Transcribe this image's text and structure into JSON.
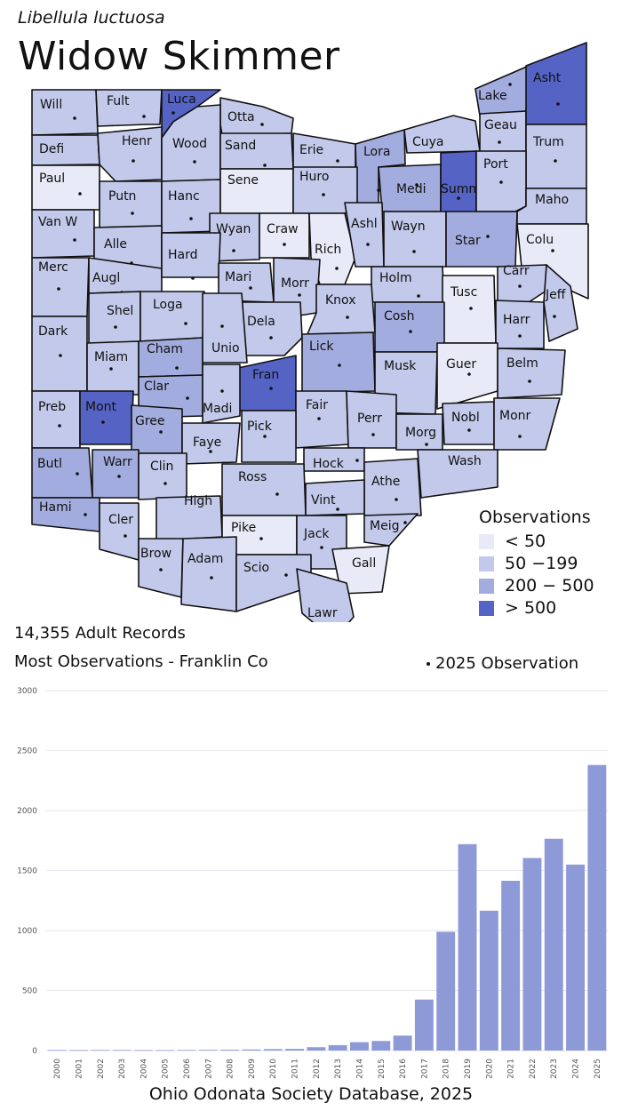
{
  "header": {
    "species": "Libellula luctuosa",
    "title": "Widow Skimmer"
  },
  "legend": {
    "title": "Observations",
    "items": [
      {
        "label": "< 50",
        "color": "#e8ebf7"
      },
      {
        "label": "50 −199",
        "color": "#c3c9ea"
      },
      {
        "label": "200 − 500",
        "color": "#a3acde"
      },
      {
        "label": "> 500",
        "color": "#5563c4"
      }
    ]
  },
  "summary": {
    "records": "14,355 Adult Records",
    "most": "Most Observations - Franklin Co",
    "marker_note": "2025 Observation"
  },
  "map": {
    "counties": [
      {
        "name": "Will",
        "bin": 1,
        "dot": true
      },
      {
        "name": "Fult",
        "bin": 1,
        "dot": true
      },
      {
        "name": "Luca",
        "bin": 3,
        "dot": true
      },
      {
        "name": "Otta",
        "bin": 1,
        "dot": true
      },
      {
        "name": "Defi",
        "bin": 1,
        "dot": false
      },
      {
        "name": "Henr",
        "bin": 1,
        "dot": true
      },
      {
        "name": "Wood",
        "bin": 1,
        "dot": true
      },
      {
        "name": "Sand",
        "bin": 1,
        "dot": true
      },
      {
        "name": "Erie",
        "bin": 1,
        "dot": true
      },
      {
        "name": "Lora",
        "bin": 2,
        "dot": true
      },
      {
        "name": "Cuya",
        "bin": 1,
        "dot": true
      },
      {
        "name": "Lake",
        "bin": 2,
        "dot": true
      },
      {
        "name": "Geau",
        "bin": 1,
        "dot": true
      },
      {
        "name": "Asht",
        "bin": 3,
        "dot": true
      },
      {
        "name": "Trum",
        "bin": 1,
        "dot": true
      },
      {
        "name": "Paul",
        "bin": 0,
        "dot": true
      },
      {
        "name": "Putn",
        "bin": 1,
        "dot": true
      },
      {
        "name": "Hanc",
        "bin": 1,
        "dot": true
      },
      {
        "name": "Sene",
        "bin": 0,
        "dot": false
      },
      {
        "name": "Huro",
        "bin": 1,
        "dot": true
      },
      {
        "name": "Medi",
        "bin": 2,
        "dot": true
      },
      {
        "name": "Summ",
        "bin": 3,
        "dot": true
      },
      {
        "name": "Port",
        "bin": 1,
        "dot": true
      },
      {
        "name": "Maho",
        "bin": 1,
        "dot": true
      },
      {
        "name": "Van W",
        "bin": 1,
        "dot": true
      },
      {
        "name": "Alle",
        "bin": 1,
        "dot": true
      },
      {
        "name": "Wyan",
        "bin": 1,
        "dot": true
      },
      {
        "name": "Craw",
        "bin": 0,
        "dot": true
      },
      {
        "name": "Rich",
        "bin": 0,
        "dot": true
      },
      {
        "name": "Ashl",
        "bin": 1,
        "dot": true
      },
      {
        "name": "Wayn",
        "bin": 1,
        "dot": true
      },
      {
        "name": "Star",
        "bin": 2,
        "dot": true
      },
      {
        "name": "Colu",
        "bin": 0,
        "dot": true
      },
      {
        "name": "Merc",
        "bin": 1,
        "dot": true
      },
      {
        "name": "Augl",
        "bin": 1,
        "dot": true
      },
      {
        "name": "Hard",
        "bin": 1,
        "dot": true
      },
      {
        "name": "Mari",
        "bin": 1,
        "dot": true
      },
      {
        "name": "Morr",
        "bin": 1,
        "dot": true
      },
      {
        "name": "Holm",
        "bin": 1,
        "dot": true
      },
      {
        "name": "Carr",
        "bin": 1,
        "dot": true
      },
      {
        "name": "Shel",
        "bin": 1,
        "dot": true
      },
      {
        "name": "Loga",
        "bin": 1,
        "dot": true
      },
      {
        "name": "Dela",
        "bin": 1,
        "dot": true
      },
      {
        "name": "Knox",
        "bin": 1,
        "dot": true
      },
      {
        "name": "Tusc",
        "bin": 0,
        "dot": true
      },
      {
        "name": "Jeff",
        "bin": 1,
        "dot": true
      },
      {
        "name": "Dark",
        "bin": 1,
        "dot": true
      },
      {
        "name": "Miam",
        "bin": 1,
        "dot": true
      },
      {
        "name": "Cham",
        "bin": 2,
        "dot": true
      },
      {
        "name": "Unio",
        "bin": 1,
        "dot": true
      },
      {
        "name": "Lick",
        "bin": 2,
        "dot": true
      },
      {
        "name": "Cosh",
        "bin": 2,
        "dot": true
      },
      {
        "name": "Harr",
        "bin": 1,
        "dot": true
      },
      {
        "name": "Clar",
        "bin": 2,
        "dot": true
      },
      {
        "name": "Fran",
        "bin": 3,
        "dot": true
      },
      {
        "name": "Musk",
        "bin": 1,
        "dot": false
      },
      {
        "name": "Guer",
        "bin": 0,
        "dot": true
      },
      {
        "name": "Belm",
        "bin": 1,
        "dot": true
      },
      {
        "name": "Preb",
        "bin": 1,
        "dot": true
      },
      {
        "name": "Mont",
        "bin": 3,
        "dot": true
      },
      {
        "name": "Gree",
        "bin": 2,
        "dot": true
      },
      {
        "name": "Madi",
        "bin": 1,
        "dot": true
      },
      {
        "name": "Fair",
        "bin": 1,
        "dot": true
      },
      {
        "name": "Perr",
        "bin": 1,
        "dot": true
      },
      {
        "name": "Nobl",
        "bin": 1,
        "dot": true
      },
      {
        "name": "Monr",
        "bin": 1,
        "dot": true
      },
      {
        "name": "Pick",
        "bin": 1,
        "dot": true
      },
      {
        "name": "Faye",
        "bin": 1,
        "dot": true
      },
      {
        "name": "Morg",
        "bin": 1,
        "dot": true
      },
      {
        "name": "Wash",
        "bin": 1,
        "dot": false
      },
      {
        "name": "Butl",
        "bin": 2,
        "dot": true
      },
      {
        "name": "Warr",
        "bin": 2,
        "dot": true
      },
      {
        "name": "Clin",
        "bin": 1,
        "dot": true
      },
      {
        "name": "Hock",
        "bin": 1,
        "dot": true
      },
      {
        "name": "Athe",
        "bin": 1,
        "dot": true
      },
      {
        "name": "Ross",
        "bin": 1,
        "dot": true
      },
      {
        "name": "Hami",
        "bin": 2,
        "dot": true
      },
      {
        "name": "High",
        "bin": 1,
        "dot": false
      },
      {
        "name": "Vint",
        "bin": 1,
        "dot": true
      },
      {
        "name": "Meig",
        "bin": 1,
        "dot": true
      },
      {
        "name": "Cler",
        "bin": 1,
        "dot": true
      },
      {
        "name": "Pike",
        "bin": 0,
        "dot": true
      },
      {
        "name": "Jack",
        "bin": 1,
        "dot": true
      },
      {
        "name": "Brow",
        "bin": 1,
        "dot": true
      },
      {
        "name": "Adam",
        "bin": 1,
        "dot": true
      },
      {
        "name": "Scio",
        "bin": 1,
        "dot": true
      },
      {
        "name": "Gall",
        "bin": 0,
        "dot": false
      },
      {
        "name": "Lawr",
        "bin": 1,
        "dot": true
      }
    ]
  },
  "chart_data": {
    "type": "bar",
    "categories": [
      "2000",
      "2001",
      "2002",
      "2003",
      "2004",
      "2005",
      "2006",
      "2007",
      "2008",
      "2009",
      "2010",
      "2011",
      "2012",
      "2013",
      "2014",
      "2015",
      "2016",
      "2017",
      "2018",
      "2019",
      "2020",
      "2021",
      "2022",
      "2023",
      "2024",
      "2025"
    ],
    "values": [
      5,
      4,
      5,
      5,
      4,
      4,
      5,
      6,
      7,
      9,
      12,
      14,
      28,
      45,
      70,
      80,
      125,
      425,
      990,
      1720,
      1165,
      1415,
      1605,
      1765,
      1550,
      2380
    ],
    "ylim": [
      0,
      3000
    ],
    "yticks": [
      0,
      500,
      1000,
      1500,
      2000,
      2500,
      3000
    ],
    "bar_color": "#8e9ad8",
    "grid": true
  },
  "footer": {
    "source": "Ohio Odonata Society Database, 2025"
  }
}
